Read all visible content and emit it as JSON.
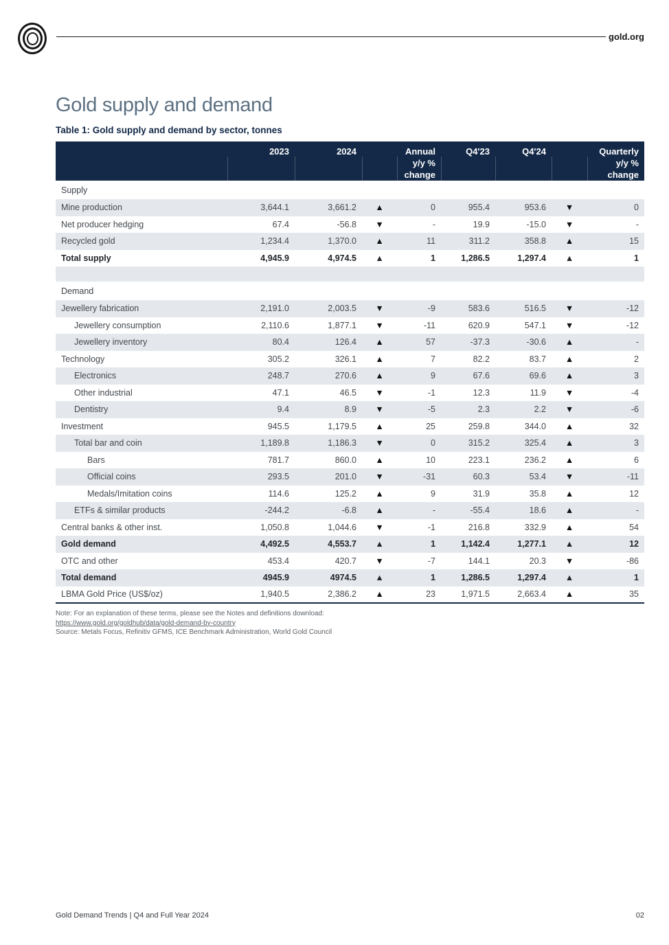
{
  "brand": {
    "site_label": "gold.org"
  },
  "page": {
    "title": "Gold supply and demand",
    "table_caption": "Table 1: Gold supply and demand by sector, tonnes"
  },
  "icons": {
    "up": "▲",
    "down": "▼"
  },
  "colors": {
    "header_navy": "#132947",
    "row_shade": "#e4e8ed",
    "title_slate": "#5c7082"
  },
  "table": {
    "header": {
      "y2023": "2023",
      "y2024": "2024",
      "annual": "Annual\ny/y %\nchange",
      "q423": "Q4'23",
      "q424": "Q4'24",
      "quarterly": "Quarterly\ny/y %\nchange"
    },
    "rows": [
      {
        "type": "section",
        "label": "Supply",
        "shaded": false
      },
      {
        "type": "data",
        "label": "Mine production",
        "indent": 0,
        "bold": false,
        "shaded": true,
        "y2023": "3,644.1",
        "y2024": "3,661.2",
        "annual_dir": "up",
        "annual": "0",
        "q423": "955.4",
        "q424": "953.6",
        "quarterly_dir": "down",
        "quarterly": "0"
      },
      {
        "type": "data",
        "label": "Net producer hedging",
        "indent": 0,
        "bold": false,
        "shaded": false,
        "y2023": "67.4",
        "y2024": "-56.8",
        "annual_dir": "down",
        "annual": "-",
        "q423": "19.9",
        "q424": "-15.0",
        "quarterly_dir": "down",
        "quarterly": "-"
      },
      {
        "type": "data",
        "label": "Recycled gold",
        "indent": 0,
        "bold": false,
        "shaded": true,
        "y2023": "1,234.4",
        "y2024": "1,370.0",
        "annual_dir": "up",
        "annual": "11",
        "q423": "311.2",
        "q424": "358.8",
        "quarterly_dir": "up",
        "quarterly": "15"
      },
      {
        "type": "data",
        "label": "Total supply",
        "indent": 0,
        "bold": true,
        "shaded": false,
        "y2023": "4,945.9",
        "y2024": "4,974.5",
        "annual_dir": "up",
        "annual": "1",
        "q423": "1,286.5",
        "q424": "1,297.4",
        "quarterly_dir": "up",
        "quarterly": "1"
      },
      {
        "type": "spacer",
        "shaded": true
      },
      {
        "type": "section",
        "label": "Demand",
        "shaded": false
      },
      {
        "type": "data",
        "label": "Jewellery fabrication",
        "indent": 0,
        "bold": false,
        "shaded": true,
        "y2023": "2,191.0",
        "y2024": "2,003.5",
        "annual_dir": "down",
        "annual": "-9",
        "q423": "583.6",
        "q424": "516.5",
        "quarterly_dir": "down",
        "quarterly": "-12"
      },
      {
        "type": "data",
        "label": "Jewellery consumption",
        "indent": 1,
        "bold": false,
        "shaded": false,
        "y2023": "2,110.6",
        "y2024": "1,877.1",
        "annual_dir": "down",
        "annual": "-11",
        "q423": "620.9",
        "q424": "547.1",
        "quarterly_dir": "down",
        "quarterly": "-12"
      },
      {
        "type": "data",
        "label": "Jewellery inventory",
        "indent": 1,
        "bold": false,
        "shaded": true,
        "y2023": "80.4",
        "y2024": "126.4",
        "annual_dir": "up",
        "annual": "57",
        "q423": "-37.3",
        "q424": "-30.6",
        "quarterly_dir": "up",
        "quarterly": "-"
      },
      {
        "type": "data",
        "label": "Technology",
        "indent": 0,
        "bold": false,
        "shaded": false,
        "y2023": "305.2",
        "y2024": "326.1",
        "annual_dir": "up",
        "annual": "7",
        "q423": "82.2",
        "q424": "83.7",
        "quarterly_dir": "up",
        "quarterly": "2"
      },
      {
        "type": "data",
        "label": "Electronics",
        "indent": 1,
        "bold": false,
        "shaded": true,
        "y2023": "248.7",
        "y2024": "270.6",
        "annual_dir": "up",
        "annual": "9",
        "q423": "67.6",
        "q424": "69.6",
        "quarterly_dir": "up",
        "quarterly": "3"
      },
      {
        "type": "data",
        "label": "Other industrial",
        "indent": 1,
        "bold": false,
        "shaded": false,
        "y2023": "47.1",
        "y2024": "46.5",
        "annual_dir": "down",
        "annual": "-1",
        "q423": "12.3",
        "q424": "11.9",
        "quarterly_dir": "down",
        "quarterly": "-4"
      },
      {
        "type": "data",
        "label": "Dentistry",
        "indent": 1,
        "bold": false,
        "shaded": true,
        "y2023": "9.4",
        "y2024": "8.9",
        "annual_dir": "down",
        "annual": "-5",
        "q423": "2.3",
        "q424": "2.2",
        "quarterly_dir": "down",
        "quarterly": "-6"
      },
      {
        "type": "data",
        "label": "Investment",
        "indent": 0,
        "bold": false,
        "shaded": false,
        "y2023": "945.5",
        "y2024": "1,179.5",
        "annual_dir": "up",
        "annual": "25",
        "q423": "259.8",
        "q424": "344.0",
        "quarterly_dir": "up",
        "quarterly": "32"
      },
      {
        "type": "data",
        "label": "Total bar and coin",
        "indent": 1,
        "bold": false,
        "shaded": true,
        "y2023": "1,189.8",
        "y2024": "1,186.3",
        "annual_dir": "down",
        "annual": "0",
        "q423": "315.2",
        "q424": "325.4",
        "quarterly_dir": "up",
        "quarterly": "3"
      },
      {
        "type": "data",
        "label": "Bars",
        "indent": 2,
        "bold": false,
        "shaded": false,
        "y2023": "781.7",
        "y2024": "860.0",
        "annual_dir": "up",
        "annual": "10",
        "q423": "223.1",
        "q424": "236.2",
        "quarterly_dir": "up",
        "quarterly": "6"
      },
      {
        "type": "data",
        "label": "Official coins",
        "indent": 2,
        "bold": false,
        "shaded": true,
        "y2023": "293.5",
        "y2024": "201.0",
        "annual_dir": "down",
        "annual": "-31",
        "q423": "60.3",
        "q424": "53.4",
        "quarterly_dir": "down",
        "quarterly": "-11"
      },
      {
        "type": "data",
        "label": "Medals/Imitation coins",
        "indent": 2,
        "bold": false,
        "shaded": false,
        "y2023": "114.6",
        "y2024": "125.2",
        "annual_dir": "up",
        "annual": "9",
        "q423": "31.9",
        "q424": "35.8",
        "quarterly_dir": "up",
        "quarterly": "12"
      },
      {
        "type": "data",
        "label": "ETFs & similar products",
        "indent": 1,
        "bold": false,
        "shaded": true,
        "y2023": "-244.2",
        "y2024": "-6.8",
        "annual_dir": "up",
        "annual": "-",
        "q423": "-55.4",
        "q424": "18.6",
        "quarterly_dir": "up",
        "quarterly": "-"
      },
      {
        "type": "data",
        "label": "Central banks & other inst.",
        "indent": 0,
        "bold": false,
        "shaded": false,
        "y2023": "1,050.8",
        "y2024": "1,044.6",
        "annual_dir": "down",
        "annual": "-1",
        "q423": "216.8",
        "q424": "332.9",
        "quarterly_dir": "up",
        "quarterly": "54"
      },
      {
        "type": "data",
        "label": "Gold demand",
        "indent": 0,
        "bold": true,
        "shaded": true,
        "y2023": "4,492.5",
        "y2024": "4,553.7",
        "annual_dir": "up",
        "annual": "1",
        "q423": "1,142.4",
        "q424": "1,277.1",
        "quarterly_dir": "up",
        "quarterly": "12"
      },
      {
        "type": "data",
        "label": "OTC and other",
        "indent": 0,
        "bold": false,
        "shaded": false,
        "y2023": "453.4",
        "y2024": "420.7",
        "annual_dir": "down",
        "annual": "-7",
        "q423": "144.1",
        "q424": "20.3",
        "quarterly_dir": "down",
        "quarterly": "-86"
      },
      {
        "type": "data",
        "label": "Total demand",
        "indent": 0,
        "bold": true,
        "shaded": true,
        "y2023": "4945.9",
        "y2024": "4974.5",
        "annual_dir": "up",
        "annual": "1",
        "q423": "1,286.5",
        "q424": "1,297.4",
        "quarterly_dir": "up",
        "quarterly": "1"
      },
      {
        "type": "data",
        "label": "LBMA Gold Price (US$/oz)",
        "indent": 0,
        "bold": false,
        "shaded": false,
        "y2023": "1,940.5",
        "y2024": "2,386.2",
        "annual_dir": "up",
        "annual": "23",
        "q423": "1,971.5",
        "q424": "2,663.4",
        "quarterly_dir": "up",
        "quarterly": "35"
      }
    ]
  },
  "notes": {
    "note": "Note: For an explanation of these terms, please see the Notes and definitions download:",
    "link": "https://www.gold.org/goldhub/data/gold-demand-by-country",
    "source": "Source: Metals Focus, Refinitiv GFMS, ICE Benchmark Administration, World Gold Council"
  },
  "footer": {
    "left": "Gold Demand Trends | Q4 and Full Year 2024",
    "page_number": "02"
  }
}
